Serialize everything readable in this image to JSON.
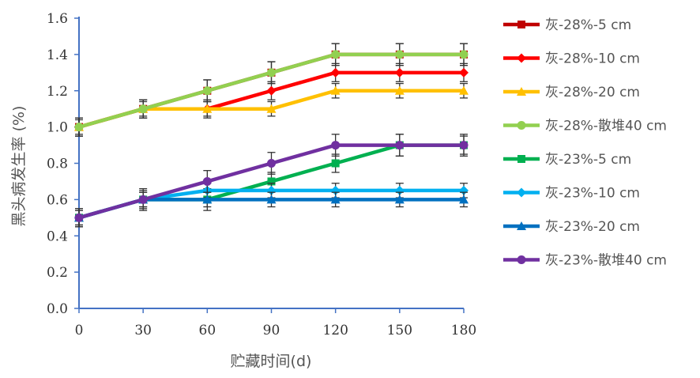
{
  "chart_data": {
    "type": "line",
    "xlabel": "贮藏时间(d)",
    "ylabel": "黑头病发生率 (%)",
    "x": [
      0,
      30,
      60,
      90,
      120,
      150,
      180
    ],
    "x_ticks": [
      "0",
      "30",
      "60",
      "90",
      "120",
      "150",
      "180"
    ],
    "y_ticks": [
      "0.0",
      "0.2",
      "0.4",
      "0.6",
      "0.8",
      "1.0",
      "1.2",
      "1.4",
      "1.6"
    ],
    "xlim": [
      0,
      180
    ],
    "ylim": [
      0,
      1.6
    ],
    "grid": false,
    "legend_position": "right",
    "error_bars": true,
    "series": [
      {
        "name": "灰-28%-5 cm",
        "color": "#c00000",
        "marker": "square",
        "values": [
          1.0,
          1.1,
          1.2,
          1.3,
          1.4,
          1.4,
          1.4
        ],
        "errors": [
          0.05,
          0.05,
          0.06,
          0.06,
          0.06,
          0.06,
          0.06
        ]
      },
      {
        "name": "灰-28%-10 cm",
        "color": "#ff0000",
        "marker": "diamond",
        "values": [
          1.0,
          1.1,
          1.1,
          1.2,
          1.3,
          1.3,
          1.3
        ],
        "errors": [
          0.05,
          0.05,
          0.05,
          0.05,
          0.05,
          0.05,
          0.05
        ]
      },
      {
        "name": "灰-28%-20 cm",
        "color": "#ffc000",
        "marker": "triangle",
        "values": [
          1.0,
          1.1,
          1.1,
          1.1,
          1.2,
          1.2,
          1.2
        ],
        "errors": [
          0.04,
          0.04,
          0.04,
          0.04,
          0.04,
          0.04,
          0.04
        ]
      },
      {
        "name": "灰-28%-散堆40 cm",
        "color": "#92d050",
        "marker": "circle",
        "values": [
          1.0,
          1.1,
          1.2,
          1.3,
          1.4,
          1.4,
          1.4
        ],
        "errors": [
          0.05,
          0.05,
          0.06,
          0.06,
          0.06,
          0.06,
          0.06
        ]
      },
      {
        "name": "灰-23%-5 cm",
        "color": "#00b050",
        "marker": "square",
        "values": [
          0.5,
          0.6,
          0.6,
          0.7,
          0.8,
          0.9,
          0.9
        ],
        "errors": [
          0.05,
          0.05,
          0.06,
          0.05,
          0.05,
          0.06,
          0.05
        ]
      },
      {
        "name": "灰-23%-10 cm",
        "color": "#00b0f0",
        "marker": "diamond",
        "values": [
          0.5,
          0.6,
          0.65,
          0.65,
          0.65,
          0.65,
          0.65
        ],
        "errors": [
          0.04,
          0.04,
          0.04,
          0.04,
          0.04,
          0.04,
          0.04
        ]
      },
      {
        "name": "灰-23%-20 cm",
        "color": "#0070c0",
        "marker": "triangle",
        "values": [
          0.5,
          0.6,
          0.6,
          0.6,
          0.6,
          0.6,
          0.6
        ],
        "errors": [
          0.04,
          0.04,
          0.04,
          0.04,
          0.04,
          0.04,
          0.04
        ]
      },
      {
        "name": "灰-23%-散堆40 cm",
        "color": "#7030a0",
        "marker": "circle",
        "values": [
          0.5,
          0.6,
          0.7,
          0.8,
          0.9,
          0.9,
          0.9
        ],
        "errors": [
          0.05,
          0.06,
          0.06,
          0.06,
          0.06,
          0.06,
          0.06
        ]
      }
    ]
  }
}
